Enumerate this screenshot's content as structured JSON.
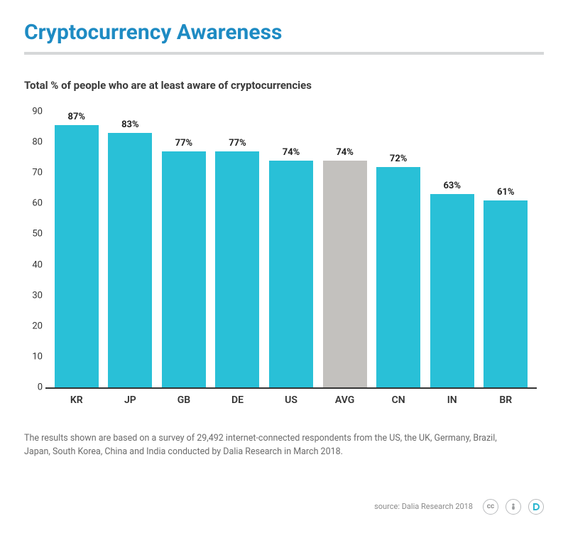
{
  "title": "Cryptocurrency Awareness",
  "subtitle": "Total % of people who are at least aware of cryptocurrencies",
  "chart": {
    "type": "bar",
    "ylim": [
      0,
      90
    ],
    "ytick_step": 10,
    "yticks": [
      0,
      10,
      20,
      30,
      40,
      50,
      60,
      70,
      80,
      90
    ],
    "axis_color": "#333333",
    "background_color": "#ffffff",
    "label_fontsize": 13,
    "bar_width": 0.78,
    "default_bar_color": "#29c0d7",
    "highlight_bar_color": "#c3c1be",
    "categories": [
      "KR",
      "JP",
      "GB",
      "DE",
      "US",
      "AVG",
      "CN",
      "IN",
      "BR"
    ],
    "values": [
      87,
      83,
      77,
      77,
      74,
      74,
      72,
      63,
      61
    ],
    "value_labels": [
      "87%",
      "83%",
      "77%",
      "77%",
      "74%",
      "74%",
      "72%",
      "63%",
      "61%"
    ],
    "bar_colors": [
      "#29c0d7",
      "#29c0d7",
      "#29c0d7",
      "#29c0d7",
      "#29c0d7",
      "#c3c1be",
      "#29c0d7",
      "#29c0d7",
      "#29c0d7"
    ]
  },
  "footnote": "The results shown are based on a survey of 29,492 internet-connected respondents from the US, the UK, Germany, Brazil, Japan, South Korea, China and India conducted by Dalia Research in March 2018.",
  "source": "source: Dalia Research 2018",
  "badges": {
    "cc": "cc",
    "attribution": "i",
    "brand": "D"
  },
  "colors": {
    "title": "#1e8bc3",
    "rule": "#d5d7d8",
    "text": "#333333",
    "muted": "#6b6b6b",
    "badge_border": "#b9bbbd",
    "badge_brand": "#2bb6cf"
  }
}
